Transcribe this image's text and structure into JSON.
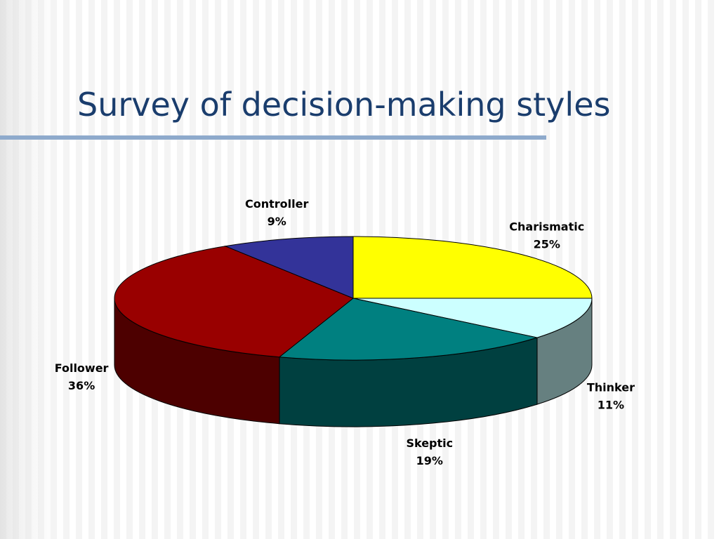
{
  "chart_data": {
    "type": "pie",
    "title": "Survey of decision-making styles",
    "categories": [
      "Charismatic",
      "Thinker",
      "Skeptic",
      "Follower",
      "Controller"
    ],
    "values": [
      25,
      11,
      19,
      36,
      9
    ],
    "value_labels": [
      "25%",
      "11%",
      "19%",
      "36%",
      "9%"
    ],
    "colors": [
      "#ffff00",
      "#ccffff",
      "#008080",
      "#990000",
      "#333399"
    ]
  }
}
